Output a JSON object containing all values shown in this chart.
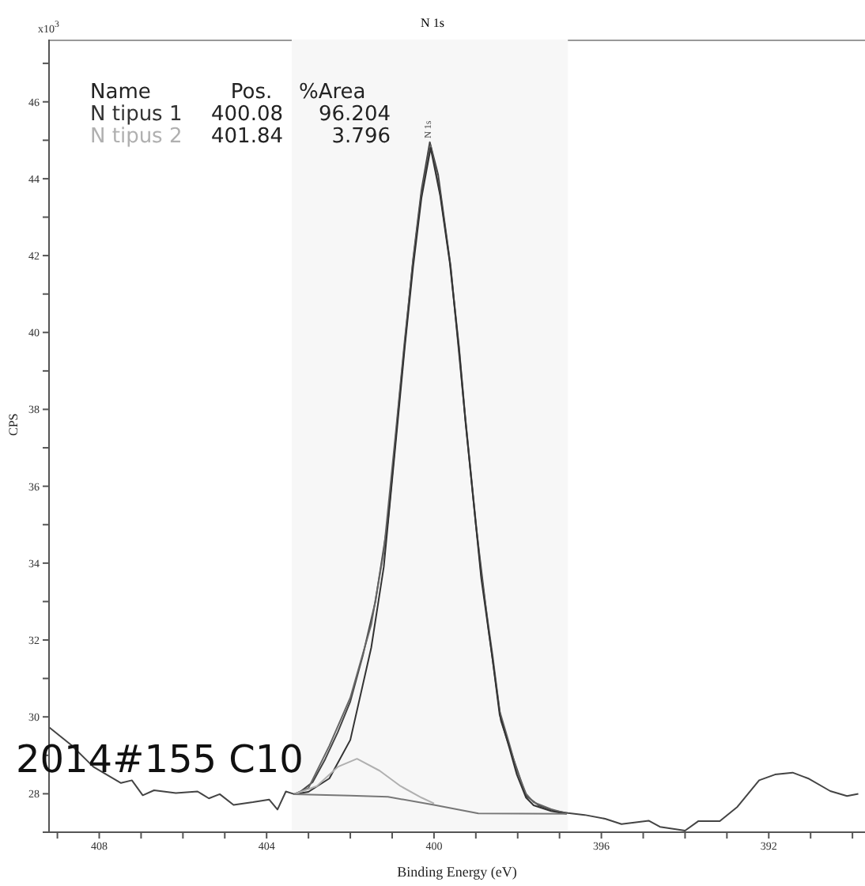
{
  "chart_data": {
    "type": "line",
    "title": "N 1s",
    "xlabel": "Binding Energy (eV)",
    "ylabel": "CPS",
    "xlim": [
      409.2,
      389.7
    ],
    "xticks": [
      {
        "value": 409,
        "label": null
      },
      408,
      {
        "value": 407,
        "label": null
      },
      {
        "value": 406,
        "label": null
      },
      {
        "value": 405,
        "label": null
      },
      404,
      {
        "value": 403,
        "label": null
      },
      {
        "value": 402,
        "label": null
      },
      {
        "value": 401,
        "label": null
      },
      400,
      {
        "value": 399,
        "label": null
      },
      {
        "value": 398,
        "label": null
      },
      {
        "value": 397,
        "label": null
      },
      396,
      {
        "value": 395,
        "label": null
      },
      {
        "value": 394,
        "label": null
      },
      {
        "value": 393,
        "label": null
      },
      392,
      {
        "value": 391,
        "label": null
      },
      {
        "value": 390,
        "label": null
      }
    ],
    "ylim": [
      27.0,
      47.62
    ],
    "yticks": [
      {
        "value": 27,
        "label": null
      },
      28,
      {
        "value": 29,
        "label": null
      },
      30,
      {
        "value": 31,
        "label": null
      },
      32,
      {
        "value": 33,
        "label": null
      },
      34,
      {
        "value": 35,
        "label": null
      },
      36,
      {
        "value": 37,
        "label": null
      },
      38,
      {
        "value": 39,
        "label": null
      },
      40,
      {
        "value": 41,
        "label": null
      },
      42,
      {
        "value": 43,
        "label": null
      },
      44,
      {
        "value": 45,
        "label": null
      },
      46,
      {
        "value": 47,
        "label": null
      }
    ],
    "legend": "top left",
    "bands": [
      {
        "axis": "x",
        "from": 403.4,
        "to": 396.8,
        "color": "#f7f7f7"
      }
    ],
    "series": [
      {
        "color": "#444444",
        "x": [
          409.2,
          408.67,
          408.14,
          407.48,
          407.22,
          406.96,
          406.69,
          406.17,
          405.65,
          405.38,
          405.12,
          404.79,
          404.33,
          403.94,
          403.74,
          403.54,
          403.34,
          403.2,
          402.9,
          402.6,
          402.3,
          402.0,
          401.7,
          401.4,
          401.1,
          400.8,
          400.5,
          400.3,
          400.1,
          399.9,
          399.6,
          399.3,
          399.0,
          398.7,
          398.4,
          398.1,
          397.8,
          397.5,
          397.1,
          396.8,
          396.4,
          395.91,
          395.52,
          394.87,
          394.6,
          394.0,
          393.68,
          393.17,
          392.75,
          392.23,
          391.85,
          391.43,
          391.06,
          390.53,
          390.13,
          389.86
        ],
        "values": [
          29.73,
          29.27,
          28.7,
          28.28,
          28.35,
          27.96,
          28.09,
          28.02,
          28.06,
          27.88,
          27.99,
          27.71,
          27.78,
          27.85,
          27.59,
          28.06,
          27.99,
          28.05,
          28.3,
          28.9,
          29.6,
          30.4,
          31.6,
          33.0,
          35.1,
          38.6,
          41.9,
          43.7,
          44.95,
          44.1,
          41.7,
          38.3,
          35.0,
          32.3,
          29.9,
          28.9,
          27.95,
          27.7,
          27.55,
          27.5,
          27.45,
          27.35,
          27.21,
          27.3,
          27.14,
          27.04,
          27.29,
          27.29,
          27.66,
          28.35,
          28.5,
          28.55,
          28.4,
          28.07,
          27.94,
          28.0
        ]
      },
      {
        "color": "#666666",
        "x": [
          403.34,
          403.0,
          402.5,
          402.0,
          401.5,
          401.2,
          400.9,
          400.7,
          400.5,
          400.3,
          400.08,
          399.85,
          399.62,
          399.4,
          399.25,
          399.05,
          398.87,
          398.6,
          398.43,
          398.2,
          398.02,
          397.8,
          397.62,
          397.2,
          396.83
        ],
        "values": [
          27.99,
          28.15,
          29.25,
          30.5,
          32.4,
          34.3,
          37.55,
          39.8,
          41.85,
          43.6,
          44.87,
          43.6,
          41.85,
          39.6,
          37.77,
          35.6,
          33.69,
          31.6,
          30.15,
          29.3,
          28.6,
          28.0,
          27.78,
          27.6,
          27.49
        ]
      },
      {
        "name": "N tipus 1",
        "color": "#333333",
        "x": [
          403.34,
          403.0,
          402.5,
          402.0,
          401.5,
          401.2,
          400.9,
          400.7,
          400.5,
          400.3,
          400.08,
          399.85,
          399.62,
          399.4,
          399.25,
          399.05,
          398.87,
          398.6,
          398.43,
          398.2,
          398.02,
          397.8,
          397.62,
          397.2,
          396.83
        ],
        "values": [
          27.99,
          28.05,
          28.4,
          29.4,
          31.8,
          33.9,
          37.3,
          39.6,
          41.7,
          43.5,
          44.8,
          43.55,
          41.8,
          39.55,
          37.7,
          35.55,
          33.6,
          31.5,
          30.05,
          29.2,
          28.5,
          27.9,
          27.7,
          27.55,
          27.48
        ]
      },
      {
        "name": "N tipus 2",
        "color": "#b0b0b0",
        "x": [
          403.34,
          402.8,
          402.3,
          401.84,
          401.3,
          400.8,
          400.3,
          400.0
        ],
        "values": [
          27.99,
          28.2,
          28.7,
          28.91,
          28.6,
          28.2,
          27.9,
          27.75
        ]
      },
      {
        "color": "#777777",
        "x": [
          403.34,
          402.0,
          401.1,
          400.0,
          398.94,
          396.83
        ],
        "values": [
          27.99,
          27.95,
          27.92,
          27.71,
          27.49,
          27.48
        ]
      }
    ],
    "annotations": [
      "Name",
      "Pos.",
      "%Area",
      "400.08",
      "96.204",
      "401.84",
      "3.796",
      "2014#155 C10",
      "x10$^{3}$",
      {
        "text": "N 1s",
        "x": 400.08,
        "y": 44.87
      }
    ]
  }
}
